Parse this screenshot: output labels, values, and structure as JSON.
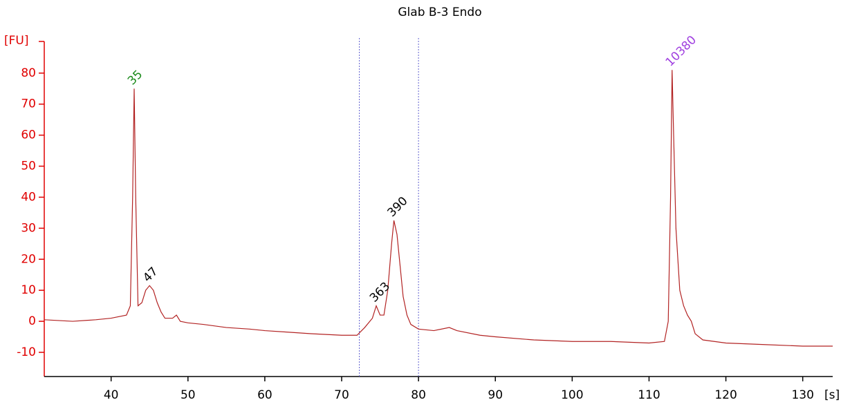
{
  "chart_data": {
    "type": "line",
    "title": "Glab B-3 Endo",
    "y_label": "[FU]",
    "x_label": "[s]",
    "x": [
      31.3,
      35,
      38,
      40,
      42,
      42.5,
      42.8,
      43.0,
      43.2,
      43.5,
      44,
      44.5,
      45,
      45.5,
      46,
      46.5,
      47,
      48,
      48.5,
      49,
      50,
      52,
      55,
      58,
      60,
      63,
      66,
      70,
      72,
      73,
      74,
      74.5,
      75,
      75.5,
      76,
      76.5,
      76.8,
      77.2,
      77.6,
      78,
      78.5,
      79,
      80,
      82,
      84,
      85,
      88,
      90,
      95,
      100,
      105,
      110,
      112,
      112.5,
      112.8,
      113.0,
      113.2,
      113.5,
      114,
      114.5,
      115,
      115.5,
      116,
      117,
      120,
      125,
      130,
      133.9
    ],
    "values": [
      0.5,
      0,
      0.5,
      1,
      2,
      5,
      40,
      75,
      40,
      5,
      6,
      10,
      11.5,
      10,
      6,
      3,
      1,
      1,
      2,
      0,
      -0.5,
      -1,
      -2,
      -2.5,
      -3,
      -3.5,
      -4,
      -4.5,
      -4.5,
      -2,
      1,
      5,
      2,
      2,
      10,
      25,
      32.5,
      28,
      18,
      8,
      2,
      -1,
      -2.5,
      -3,
      -2,
      -3,
      -4.5,
      -5,
      -6,
      -6.5,
      -6.5,
      -7,
      -6.5,
      0,
      40,
      81,
      60,
      30,
      10,
      5,
      2,
      0,
      -4,
      -6,
      -7,
      -7.5,
      -8,
      -8
    ],
    "color": "#b22222",
    "axis_color": "#e00000",
    "annotations": [
      {
        "text": "35",
        "x": 43.0,
        "y": 75,
        "color": "#1a8a1a"
      },
      {
        "text": "47",
        "x": 45,
        "y": 11.5,
        "color": "#000000"
      },
      {
        "text": "363",
        "x": 74.5,
        "y": 5,
        "color": "#000000"
      },
      {
        "text": "390",
        "x": 76.8,
        "y": 32.5,
        "color": "#000000"
      },
      {
        "text": "10380",
        "x": 113.0,
        "y": 81,
        "color": "#a040e0"
      }
    ],
    "region": [
      72.3,
      80
    ],
    "region_color": "#6060d0",
    "xlim": [
      31.3,
      133.9
    ],
    "ylim": [
      -17.8,
      90.2
    ],
    "xticks": [
      40,
      50,
      60,
      70,
      80,
      90,
      100,
      110,
      120,
      130
    ],
    "yticks": [
      -10,
      0,
      10,
      20,
      30,
      40,
      50,
      60,
      70,
      80
    ]
  }
}
